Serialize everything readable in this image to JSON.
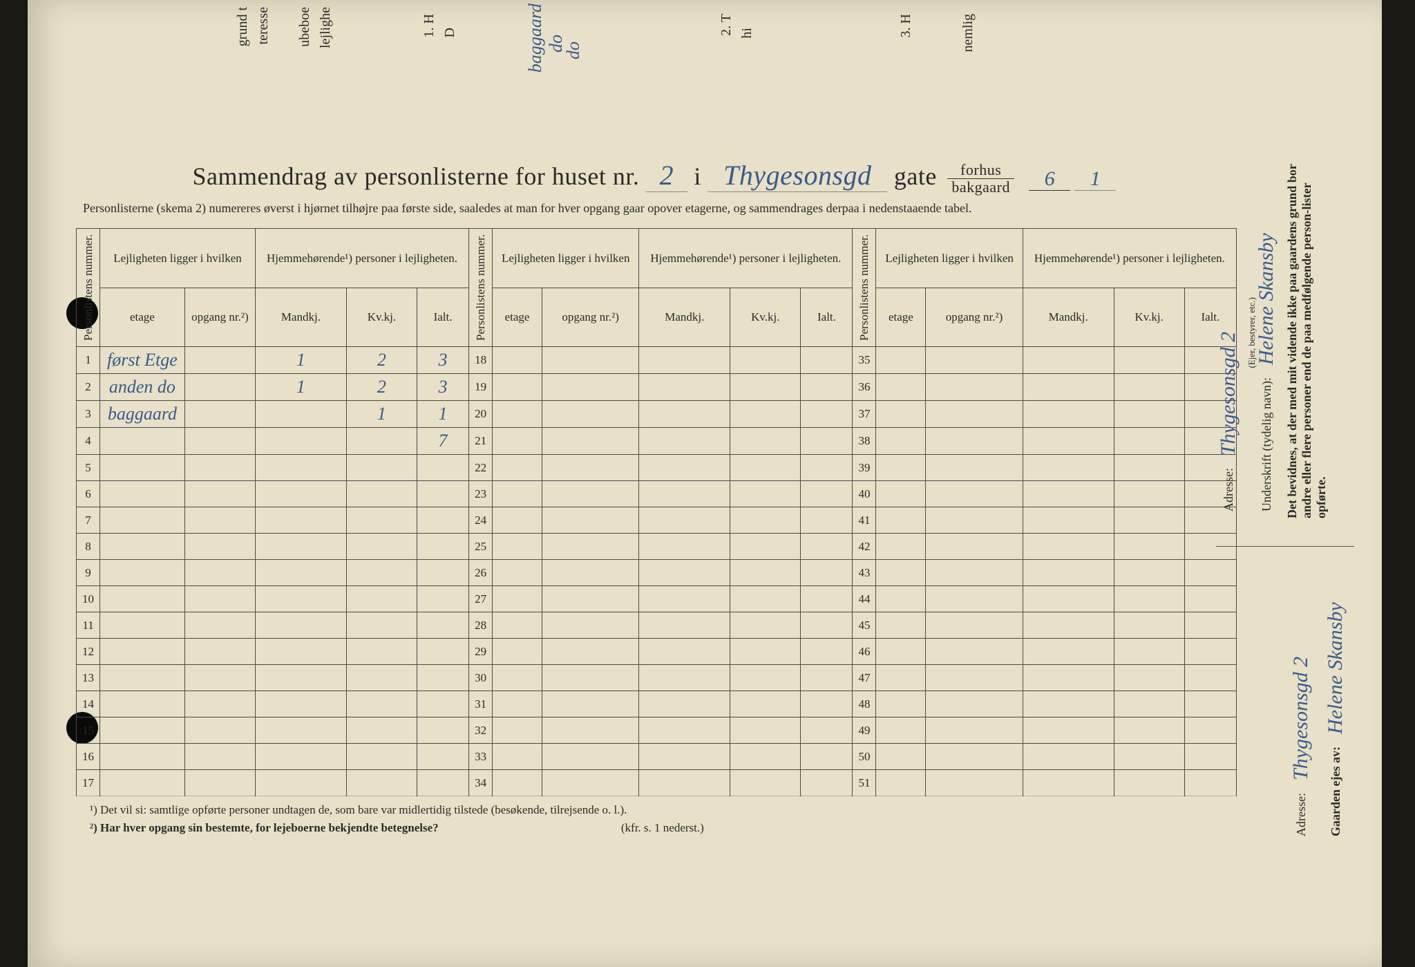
{
  "top_fragments": {
    "f1": "grund t",
    "f2": "teresse",
    "f3": "ubeboe",
    "f4": "lejlighe",
    "f5": "1. H",
    "f6": "D",
    "f7": "2. T",
    "f8": "hi",
    "f9": "3. H",
    "f10": "nemlig",
    "hw1": "baggaard",
    "hw2": "do",
    "hw3": "do"
  },
  "title": {
    "prefix": "Sammendrag av personlisterne for huset nr.",
    "house_nr": "2",
    "mid": "i",
    "street": "Thygesonsgd",
    "gate": "gate",
    "forhus": "forhus",
    "bakgaard": "bakgaard",
    "forhus_nr": "6",
    "bakgaard_nr": "1"
  },
  "subtitle": "Personlisterne (skema 2) numereres øverst i hjørnet tilhøjre paa første side, saaledes at man for hver opgang gaar opover etagerne, og sammendrages derpaa i nedenstaaende tabel.",
  "subtitle_bold1": "for hver opgang",
  "subtitle_bold2": "opover",
  "headers": {
    "personlistens": "Personlistens nummer.",
    "lejlighet": "Lejligheten ligger i hvilken",
    "hjemme": "Hjemmehørende¹) personer i lejligheten.",
    "etage": "etage",
    "opgang": "opgang nr.²)",
    "mandkj": "Mandkj.",
    "kvkj": "Kv.kj.",
    "ialt": "Ialt."
  },
  "rows": [
    {
      "n": "1",
      "etage": "først Etge",
      "opg": "",
      "m": "1",
      "k": "2",
      "i": "3"
    },
    {
      "n": "2",
      "etage": "anden do",
      "opg": "",
      "m": "1",
      "k": "2",
      "i": "3"
    },
    {
      "n": "3",
      "etage": "baggaard",
      "opg": "",
      "m": "",
      "k": "1",
      "i": "1"
    },
    {
      "n": "4",
      "etage": "",
      "opg": "",
      "m": "",
      "k": "",
      "i": "7"
    },
    {
      "n": "5",
      "etage": "",
      "opg": "",
      "m": "",
      "k": "",
      "i": ""
    },
    {
      "n": "6",
      "etage": "",
      "opg": "",
      "m": "",
      "k": "",
      "i": ""
    },
    {
      "n": "7",
      "etage": "",
      "opg": "",
      "m": "",
      "k": "",
      "i": ""
    },
    {
      "n": "8",
      "etage": "",
      "opg": "",
      "m": "",
      "k": "",
      "i": ""
    },
    {
      "n": "9",
      "etage": "",
      "opg": "",
      "m": "",
      "k": "",
      "i": ""
    },
    {
      "n": "10",
      "etage": "",
      "opg": "",
      "m": "",
      "k": "",
      "i": ""
    },
    {
      "n": "11",
      "etage": "",
      "opg": "",
      "m": "",
      "k": "",
      "i": ""
    },
    {
      "n": "12",
      "etage": "",
      "opg": "",
      "m": "",
      "k": "",
      "i": ""
    },
    {
      "n": "13",
      "etage": "",
      "opg": "",
      "m": "",
      "k": "",
      "i": ""
    },
    {
      "n": "14",
      "etage": "",
      "opg": "",
      "m": "",
      "k": "",
      "i": ""
    },
    {
      "n": "15",
      "etage": "",
      "opg": "",
      "m": "",
      "k": "",
      "i": ""
    },
    {
      "n": "16",
      "etage": "",
      "opg": "",
      "m": "",
      "k": "",
      "i": ""
    },
    {
      "n": "17",
      "etage": "",
      "opg": "",
      "m": "",
      "k": "",
      "i": ""
    }
  ],
  "col2_nums": [
    "18",
    "19",
    "20",
    "21",
    "22",
    "23",
    "24",
    "25",
    "26",
    "27",
    "28",
    "29",
    "30",
    "31",
    "32",
    "33",
    "34"
  ],
  "col3_nums": [
    "35",
    "36",
    "37",
    "38",
    "39",
    "40",
    "41",
    "42",
    "43",
    "44",
    "45",
    "46",
    "47",
    "48",
    "49",
    "50",
    "51"
  ],
  "footnotes": {
    "f1": "¹)   Det vil si: samtlige opførte personer undtagen de, som bare var midlertidig tilstede (besøkende, tilrejsende o. l.).",
    "f2": "²)   Har hver opgang sin bestemte, for lejeboerne bekjendte betegnelse?",
    "f2_suffix": "(kfr. s. 1 nederst.)"
  },
  "right": {
    "bevidnes": "Det bevidnes, at der med mit vidende ikke paa gaardens grund bor andre eller flere personer end de paa medfølgende person-lister opførte.",
    "underskrift_label": "Underskrift (tydelig navn):",
    "underskrift_value": "Helene Skansby",
    "eier_note": "(Ejer, bestyrer, etc.)",
    "adresse_label": "Adresse:",
    "adresse_value": "Thygesonsgd 2",
    "gaarden_label": "Gaarden ejes av:",
    "gaarden_value": "Helene Skansby",
    "adresse2_label": "Adresse:",
    "adresse2_value": "Thygesonsgd 2"
  }
}
